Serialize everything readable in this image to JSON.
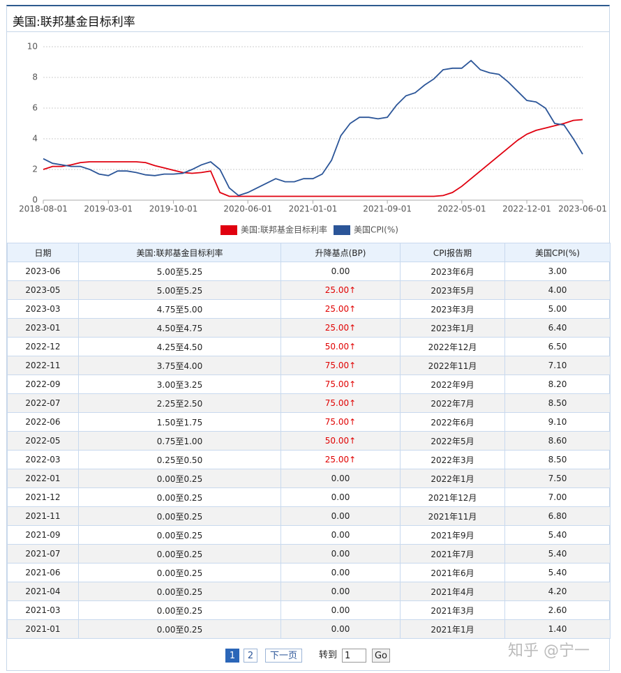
{
  "header": {
    "title": "美国:联邦基金目标利率"
  },
  "chart_data": {
    "type": "line",
    "x": [
      "2018-08-01",
      "2018-09-01",
      "2018-10-01",
      "2018-11-01",
      "2018-12-01",
      "2019-01-01",
      "2019-02-01",
      "2019-03-01",
      "2019-04-01",
      "2019-05-01",
      "2019-06-01",
      "2019-07-01",
      "2019-08-01",
      "2019-09-01",
      "2019-10-01",
      "2019-11-01",
      "2019-12-01",
      "2020-01-01",
      "2020-02-01",
      "2020-03-01",
      "2020-04-01",
      "2020-05-01",
      "2020-06-01",
      "2020-07-01",
      "2020-08-01",
      "2020-09-01",
      "2020-10-01",
      "2020-11-01",
      "2020-12-01",
      "2021-01-01",
      "2021-02-01",
      "2021-03-01",
      "2021-04-01",
      "2021-05-01",
      "2021-06-01",
      "2021-07-01",
      "2021-08-01",
      "2021-09-01",
      "2021-10-01",
      "2021-11-01",
      "2021-12-01",
      "2022-01-01",
      "2022-02-01",
      "2022-03-01",
      "2022-04-01",
      "2022-05-01",
      "2022-06-01",
      "2022-07-01",
      "2022-08-01",
      "2022-09-01",
      "2022-10-01",
      "2022-11-01",
      "2022-12-01",
      "2023-01-01",
      "2023-02-01",
      "2023-03-01",
      "2023-04-01",
      "2023-05-01",
      "2023-06-01"
    ],
    "series": [
      {
        "name": "美国:联邦基金目标利率",
        "color": "#e0000f",
        "values": [
          2.0,
          2.2,
          2.2,
          2.3,
          2.45,
          2.5,
          2.5,
          2.5,
          2.5,
          2.5,
          2.5,
          2.45,
          2.25,
          2.1,
          1.95,
          1.8,
          1.75,
          1.8,
          1.9,
          0.5,
          0.25,
          0.25,
          0.25,
          0.25,
          0.25,
          0.25,
          0.25,
          0.25,
          0.25,
          0.25,
          0.25,
          0.25,
          0.25,
          0.25,
          0.25,
          0.25,
          0.25,
          0.25,
          0.25,
          0.25,
          0.25,
          0.25,
          0.25,
          0.3,
          0.5,
          0.9,
          1.4,
          1.9,
          2.4,
          2.9,
          3.4,
          3.9,
          4.3,
          4.55,
          4.7,
          4.85,
          5.0,
          5.2,
          5.25
        ]
      },
      {
        "name": "美国CPI(%)",
        "color": "#2b5598",
        "values": [
          2.7,
          2.4,
          2.3,
          2.2,
          2.2,
          2.0,
          1.7,
          1.6,
          1.9,
          1.9,
          1.8,
          1.65,
          1.6,
          1.7,
          1.7,
          1.75,
          2.0,
          2.3,
          2.5,
          2.0,
          0.8,
          0.3,
          0.5,
          0.8,
          1.1,
          1.4,
          1.2,
          1.2,
          1.4,
          1.4,
          1.7,
          2.6,
          4.2,
          5.0,
          5.4,
          5.4,
          5.3,
          5.4,
          6.2,
          6.8,
          7.0,
          7.5,
          7.9,
          8.5,
          8.6,
          8.6,
          9.1,
          8.5,
          8.3,
          8.2,
          7.7,
          7.1,
          6.5,
          6.4,
          6.0,
          5.0,
          4.9,
          4.0,
          3.0
        ]
      }
    ],
    "xticks": [
      "2018-08-01",
      "2019-03-01",
      "2019-10-01",
      "2020-06-01",
      "2021-01-01",
      "2021-09-01",
      "2022-05-01",
      "2022-12-01",
      "2023-06-01"
    ],
    "ylim": [
      0,
      10
    ],
    "yticks": [
      0,
      2,
      4,
      6,
      8,
      10
    ],
    "grid": true,
    "legend": "bottom"
  },
  "table": {
    "columns": [
      "日期",
      "美国:联邦基金目标利率",
      "升降基点(BP)",
      "CPI报告期",
      "美国CPI(%)"
    ],
    "rows": [
      [
        "2023-06",
        "5.00至5.25",
        "0.00",
        "2023年6月",
        "3.00"
      ],
      [
        "2023-05",
        "5.00至5.25",
        "25.00↑",
        "2023年5月",
        "4.00"
      ],
      [
        "2023-03",
        "4.75至5.00",
        "25.00↑",
        "2023年3月",
        "5.00"
      ],
      [
        "2023-01",
        "4.50至4.75",
        "25.00↑",
        "2023年1月",
        "6.40"
      ],
      [
        "2022-12",
        "4.25至4.50",
        "50.00↑",
        "2022年12月",
        "6.50"
      ],
      [
        "2022-11",
        "3.75至4.00",
        "75.00↑",
        "2022年11月",
        "7.10"
      ],
      [
        "2022-09",
        "3.00至3.25",
        "75.00↑",
        "2022年9月",
        "8.20"
      ],
      [
        "2022-07",
        "2.25至2.50",
        "75.00↑",
        "2022年7月",
        "8.50"
      ],
      [
        "2022-06",
        "1.50至1.75",
        "75.00↑",
        "2022年6月",
        "9.10"
      ],
      [
        "2022-05",
        "0.75至1.00",
        "50.00↑",
        "2022年5月",
        "8.60"
      ],
      [
        "2022-03",
        "0.25至0.50",
        "25.00↑",
        "2022年3月",
        "8.50"
      ],
      [
        "2022-01",
        "0.00至0.25",
        "0.00",
        "2022年1月",
        "7.50"
      ],
      [
        "2021-12",
        "0.00至0.25",
        "0.00",
        "2021年12月",
        "7.00"
      ],
      [
        "2021-11",
        "0.00至0.25",
        "0.00",
        "2021年11月",
        "6.80"
      ],
      [
        "2021-09",
        "0.00至0.25",
        "0.00",
        "2021年9月",
        "5.40"
      ],
      [
        "2021-07",
        "0.00至0.25",
        "0.00",
        "2021年7月",
        "5.40"
      ],
      [
        "2021-06",
        "0.00至0.25",
        "0.00",
        "2021年6月",
        "5.40"
      ],
      [
        "2021-04",
        "0.00至0.25",
        "0.00",
        "2021年4月",
        "4.20"
      ],
      [
        "2021-03",
        "0.00至0.25",
        "0.00",
        "2021年3月",
        "2.60"
      ],
      [
        "2021-01",
        "0.00至0.25",
        "0.00",
        "2021年1月",
        "1.40"
      ]
    ]
  },
  "pagination": {
    "pages": [
      "1",
      "2"
    ],
    "next": "下一页",
    "goto": "转到",
    "input": "1",
    "button": "Go"
  },
  "watermark": "知乎 @宁一"
}
